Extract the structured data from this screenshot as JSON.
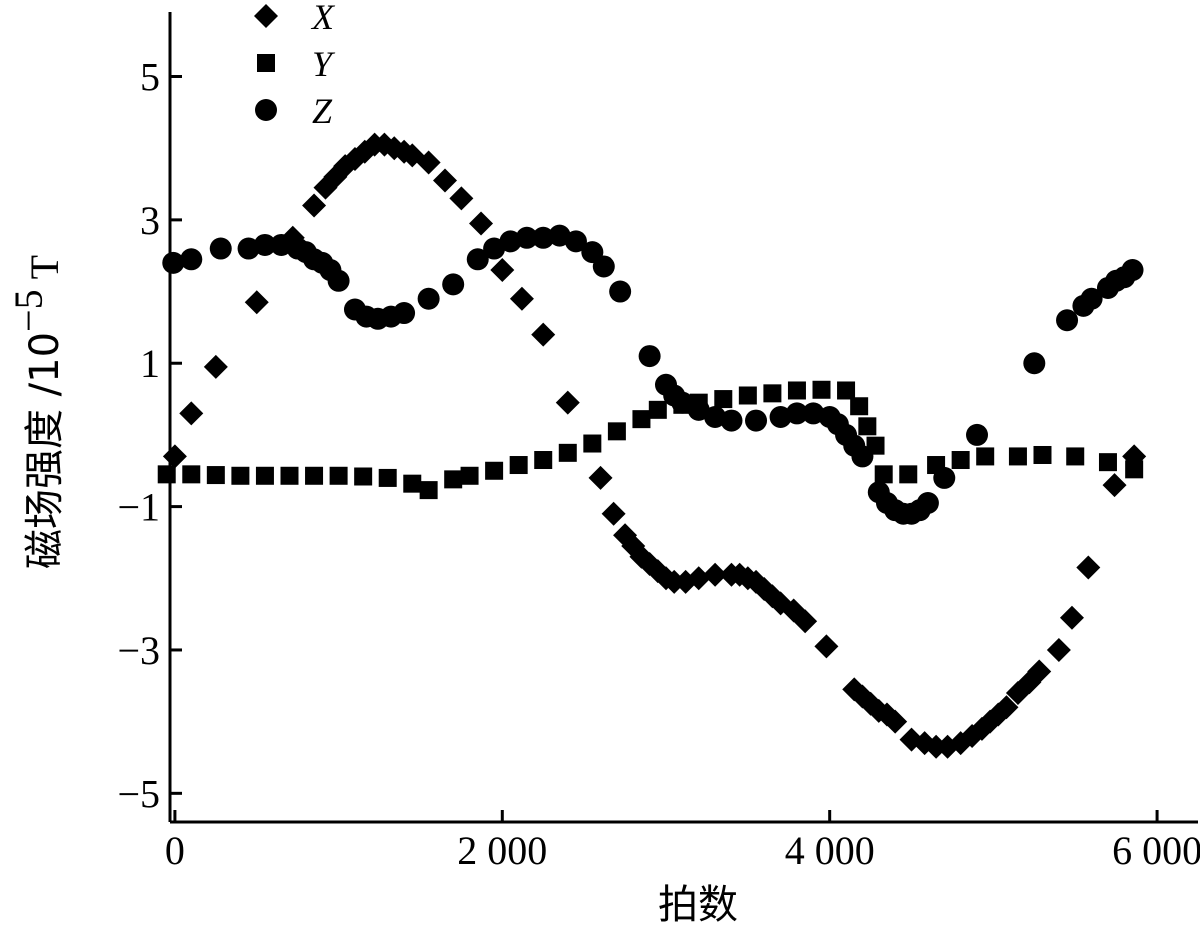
{
  "chart_data": {
    "type": "scatter",
    "xlabel": "拍数",
    "ylabel": "磁场强度 /10",
    "ylabel_exponent": "−5",
    "ylabel_unit": "T",
    "xlim": [
      -30,
      6250
    ],
    "ylim": [
      -5.4,
      5.9
    ],
    "x_ticks": [
      0,
      2000,
      4000,
      6000
    ],
    "x_tick_labels": [
      "0",
      "2 000",
      "4 000",
      "6 000"
    ],
    "y_ticks": [
      5,
      3,
      1,
      -1,
      -3,
      -5
    ],
    "y_tick_labels": [
      "5",
      "3",
      "1",
      "−1",
      "−3",
      "−5"
    ],
    "grid": false,
    "legend_position": "top-left",
    "series": [
      {
        "name": "X",
        "marker": "diamond",
        "color": "#000000",
        "points": [
          [
            0,
            -0.3
          ],
          [
            100,
            0.3
          ],
          [
            250,
            0.95
          ],
          [
            500,
            1.85
          ],
          [
            720,
            2.75
          ],
          [
            850,
            3.2
          ],
          [
            920,
            3.45
          ],
          [
            980,
            3.6
          ],
          [
            1040,
            3.75
          ],
          [
            1100,
            3.85
          ],
          [
            1160,
            3.95
          ],
          [
            1220,
            4.05
          ],
          [
            1280,
            4.05
          ],
          [
            1340,
            4.0
          ],
          [
            1400,
            3.95
          ],
          [
            1450,
            3.9
          ],
          [
            1550,
            3.8
          ],
          [
            1650,
            3.55
          ],
          [
            1750,
            3.3
          ],
          [
            1870,
            2.95
          ],
          [
            2000,
            2.3
          ],
          [
            2120,
            1.9
          ],
          [
            2250,
            1.4
          ],
          [
            2400,
            0.45
          ],
          [
            2600,
            -0.6
          ],
          [
            2680,
            -1.1
          ],
          [
            2750,
            -1.4
          ],
          [
            2800,
            -1.55
          ],
          [
            2850,
            -1.7
          ],
          [
            2900,
            -1.8
          ],
          [
            2950,
            -1.9
          ],
          [
            3000,
            -2.0
          ],
          [
            3050,
            -2.05
          ],
          [
            3120,
            -2.05
          ],
          [
            3200,
            -2.0
          ],
          [
            3300,
            -1.95
          ],
          [
            3400,
            -1.95
          ],
          [
            3450,
            -1.95
          ],
          [
            3500,
            -2.0
          ],
          [
            3550,
            -2.05
          ],
          [
            3600,
            -2.15
          ],
          [
            3650,
            -2.25
          ],
          [
            3700,
            -2.35
          ],
          [
            3780,
            -2.45
          ],
          [
            3850,
            -2.6
          ],
          [
            3980,
            -2.95
          ],
          [
            4150,
            -3.55
          ],
          [
            4200,
            -3.65
          ],
          [
            4250,
            -3.75
          ],
          [
            4300,
            -3.85
          ],
          [
            4350,
            -3.9
          ],
          [
            4400,
            -4.0
          ],
          [
            4500,
            -4.25
          ],
          [
            4580,
            -4.3
          ],
          [
            4650,
            -4.35
          ],
          [
            4720,
            -4.35
          ],
          [
            4800,
            -4.3
          ],
          [
            4870,
            -4.2
          ],
          [
            4930,
            -4.1
          ],
          [
            4980,
            -4.0
          ],
          [
            5030,
            -3.9
          ],
          [
            5080,
            -3.8
          ],
          [
            5150,
            -3.6
          ],
          [
            5220,
            -3.45
          ],
          [
            5280,
            -3.3
          ],
          [
            5400,
            -3.0
          ],
          [
            5480,
            -2.55
          ],
          [
            5580,
            -1.85
          ],
          [
            5740,
            -0.7
          ],
          [
            5860,
            -0.3
          ]
        ]
      },
      {
        "name": "Y",
        "marker": "square",
        "color": "#000000",
        "points": [
          [
            -50,
            -0.55
          ],
          [
            100,
            -0.55
          ],
          [
            250,
            -0.56
          ],
          [
            400,
            -0.57
          ],
          [
            550,
            -0.57
          ],
          [
            700,
            -0.57
          ],
          [
            850,
            -0.57
          ],
          [
            1000,
            -0.57
          ],
          [
            1150,
            -0.58
          ],
          [
            1300,
            -0.6
          ],
          [
            1450,
            -0.68
          ],
          [
            1550,
            -0.77
          ],
          [
            1700,
            -0.62
          ],
          [
            1800,
            -0.57
          ],
          [
            1950,
            -0.5
          ],
          [
            2100,
            -0.42
          ],
          [
            2250,
            -0.35
          ],
          [
            2400,
            -0.25
          ],
          [
            2550,
            -0.12
          ],
          [
            2700,
            0.05
          ],
          [
            2850,
            0.22
          ],
          [
            2950,
            0.35
          ],
          [
            3100,
            0.42
          ],
          [
            3200,
            0.45
          ],
          [
            3350,
            0.5
          ],
          [
            3500,
            0.55
          ],
          [
            3650,
            0.58
          ],
          [
            3800,
            0.62
          ],
          [
            3950,
            0.63
          ],
          [
            4100,
            0.62
          ],
          [
            4180,
            0.4
          ],
          [
            4230,
            0.12
          ],
          [
            4280,
            -0.15
          ],
          [
            4330,
            -0.55
          ],
          [
            4480,
            -0.55
          ],
          [
            4650,
            -0.42
          ],
          [
            4800,
            -0.35
          ],
          [
            4950,
            -0.3
          ],
          [
            5150,
            -0.3
          ],
          [
            5300,
            -0.28
          ],
          [
            5500,
            -0.3
          ],
          [
            5700,
            -0.38
          ],
          [
            5860,
            -0.48
          ]
        ]
      },
      {
        "name": "Z",
        "marker": "circle",
        "color": "#000000",
        "points": [
          [
            -10,
            2.4
          ],
          [
            100,
            2.45
          ],
          [
            280,
            2.6
          ],
          [
            450,
            2.6
          ],
          [
            550,
            2.65
          ],
          [
            650,
            2.65
          ],
          [
            750,
            2.6
          ],
          [
            800,
            2.55
          ],
          [
            850,
            2.45
          ],
          [
            900,
            2.4
          ],
          [
            950,
            2.3
          ],
          [
            1000,
            2.15
          ],
          [
            1100,
            1.75
          ],
          [
            1170,
            1.65
          ],
          [
            1240,
            1.62
          ],
          [
            1320,
            1.65
          ],
          [
            1400,
            1.7
          ],
          [
            1550,
            1.9
          ],
          [
            1700,
            2.1
          ],
          [
            1850,
            2.45
          ],
          [
            1950,
            2.6
          ],
          [
            2050,
            2.7
          ],
          [
            2150,
            2.75
          ],
          [
            2250,
            2.75
          ],
          [
            2350,
            2.78
          ],
          [
            2450,
            2.7
          ],
          [
            2550,
            2.55
          ],
          [
            2620,
            2.35
          ],
          [
            2720,
            2.0
          ],
          [
            2900,
            1.1
          ],
          [
            3000,
            0.7
          ],
          [
            3050,
            0.55
          ],
          [
            3100,
            0.45
          ],
          [
            3200,
            0.35
          ],
          [
            3300,
            0.25
          ],
          [
            3400,
            0.2
          ],
          [
            3550,
            0.2
          ],
          [
            3700,
            0.25
          ],
          [
            3800,
            0.3
          ],
          [
            3900,
            0.3
          ],
          [
            4000,
            0.25
          ],
          [
            4050,
            0.15
          ],
          [
            4100,
            0.0
          ],
          [
            4150,
            -0.15
          ],
          [
            4200,
            -0.3
          ],
          [
            4300,
            -0.8
          ],
          [
            4350,
            -0.95
          ],
          [
            4400,
            -1.05
          ],
          [
            4450,
            -1.1
          ],
          [
            4500,
            -1.1
          ],
          [
            4550,
            -1.05
          ],
          [
            4600,
            -0.95
          ],
          [
            4700,
            -0.6
          ],
          [
            4900,
            0.0
          ],
          [
            5250,
            1.0
          ],
          [
            5450,
            1.6
          ],
          [
            5550,
            1.8
          ],
          [
            5600,
            1.9
          ],
          [
            5700,
            2.05
          ],
          [
            5750,
            2.15
          ],
          [
            5800,
            2.2
          ],
          [
            5850,
            2.3
          ]
        ]
      }
    ]
  }
}
